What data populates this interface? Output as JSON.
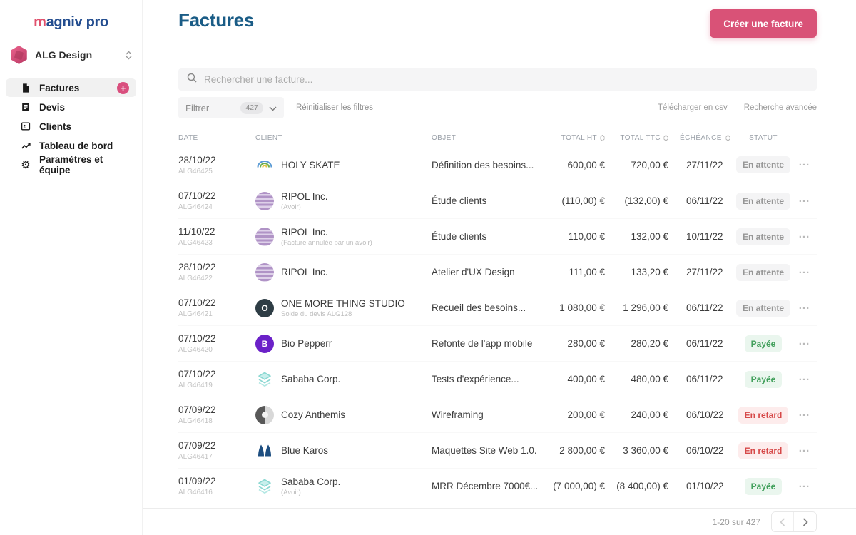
{
  "sidebar": {
    "logo_part1": "m",
    "logo_part2": "agniv pro",
    "workspace": "ALG Design",
    "items": [
      {
        "label": "Factures",
        "active": true,
        "badge": "+"
      },
      {
        "label": "Devis"
      },
      {
        "label": "Clients"
      },
      {
        "label": "Tableau de bord"
      },
      {
        "label": "Paramètres et équipe"
      }
    ]
  },
  "header": {
    "title": "Factures",
    "create_button": "Créer une facture"
  },
  "toolbar": {
    "search_placeholder": "Rechercher une facture...",
    "filter_label": "Filtrer",
    "filter_count": "427",
    "reset_filters": "Réinitialiser les filtres",
    "download_csv": "Télécharger en csv",
    "advanced_search": "Recherche avancée"
  },
  "table": {
    "headers": [
      "DATE",
      "CLIENT",
      "OBJET",
      "TOTAL HT",
      "TOTAL TTC",
      "ÉCHÉANCE",
      "STATUT"
    ],
    "rows": [
      {
        "date": "28/10/22",
        "id": "ALG46425",
        "client": "HOLY SKATE",
        "note": "",
        "avatar": {
          "kind": "arc"
        },
        "objet": "Définition des besoins...",
        "ht": "600,00 €",
        "ttc": "720,00 €",
        "echeance": "27/11/22",
        "statut": "En attente",
        "statut_type": "attente"
      },
      {
        "date": "07/10/22",
        "id": "ALG46424",
        "client": "RIPOL Inc.",
        "note": "(Avoir)",
        "avatar": {
          "kind": "stripes"
        },
        "objet": "Étude clients",
        "ht": "(110,00) €",
        "ttc": "(132,00) €",
        "echeance": "06/11/22",
        "statut": "En attente",
        "statut_type": "attente"
      },
      {
        "date": "11/10/22",
        "id": "ALG46423",
        "client": "RIPOL Inc.",
        "note": "(Facture annulée par un avoir)",
        "avatar": {
          "kind": "stripes"
        },
        "objet": "Étude clients",
        "ht": "110,00 €",
        "ttc": "132,00 €",
        "echeance": "10/11/22",
        "statut": "En attente",
        "statut_type": "attente"
      },
      {
        "date": "28/10/22",
        "id": "ALG46422",
        "client": "RIPOL Inc.",
        "note": "",
        "avatar": {
          "kind": "stripes"
        },
        "objet": "Atelier d'UX Design",
        "ht": "111,00 €",
        "ttc": "133,20 €",
        "echeance": "27/11/22",
        "statut": "En attente",
        "statut_type": "attente"
      },
      {
        "date": "07/10/22",
        "id": "ALG46421",
        "client": "ONE MORE THING STUDIO",
        "note": "Solde du devis ALG128",
        "avatar": {
          "kind": "letter",
          "letter": "O",
          "color": "#2e3d45"
        },
        "objet": "Recueil des besoins...",
        "ht": "1 080,00 €",
        "ttc": "1 296,00 €",
        "echeance": "06/11/22",
        "statut": "En attente",
        "statut_type": "attente"
      },
      {
        "date": "07/10/22",
        "id": "ALG46420",
        "client": "Bio Pepperr",
        "note": "",
        "avatar": {
          "kind": "letter",
          "letter": "B",
          "color": "#6b21c8"
        },
        "objet": "Refonte de l'app mobile",
        "ht": "280,00 €",
        "ttc": "280,20 €",
        "echeance": "06/11/22",
        "statut": "Payée",
        "statut_type": "payee"
      },
      {
        "date": "07/10/22",
        "id": "ALG46419",
        "client": "Sababa Corp.",
        "note": "",
        "avatar": {
          "kind": "layers"
        },
        "objet": "Tests d'expérience...",
        "ht": "400,00 €",
        "ttc": "480,00 €",
        "echeance": "06/11/22",
        "statut": "Payée",
        "statut_type": "payee"
      },
      {
        "date": "07/09/22",
        "id": "ALG46418",
        "client": "Cozy Anthemis",
        "note": "",
        "avatar": {
          "kind": "half"
        },
        "objet": "Wireframing",
        "ht": "200,00 €",
        "ttc": "240,00 €",
        "echeance": "06/10/22",
        "statut": "En retard",
        "statut_type": "retard"
      },
      {
        "date": "07/09/22",
        "id": "ALG46417",
        "client": "Blue Karos",
        "note": "",
        "avatar": {
          "kind": "peaks"
        },
        "objet": "Maquettes Site Web 1.0.",
        "ht": "2 800,00 €",
        "ttc": "3 360,00 €",
        "echeance": "06/10/22",
        "statut": "En retard",
        "statut_type": "retard"
      },
      {
        "date": "01/09/22",
        "id": "ALG46416",
        "client": "Sababa Corp.",
        "note": "(Avoir)",
        "avatar": {
          "kind": "layers"
        },
        "objet": "MRR Décembre 7000€...",
        "ht": "(7 000,00) €",
        "ttc": "(8 400,00) €",
        "echeance": "01/10/22",
        "statut": "Payée",
        "statut_type": "payee"
      }
    ]
  },
  "pagination": {
    "range_label": "1-20 sur 427"
  },
  "colors": {
    "accent_pink": "#d95277",
    "title_blue": "#1a5c86",
    "logo_pink": "#e0506c",
    "logo_navy": "#234d8f",
    "status_pending_text": "#969696",
    "status_paid_text": "#42a05c",
    "status_late_text": "#d64848"
  }
}
